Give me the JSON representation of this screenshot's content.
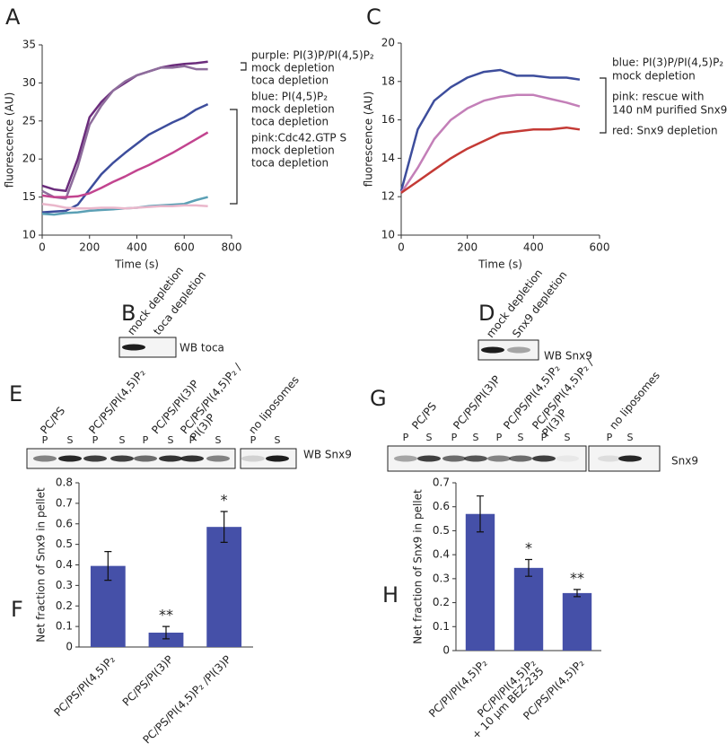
{
  "chart_data": [
    {
      "panel": "A",
      "type": "line",
      "xlabel": "Time (s)",
      "ylabel": "fluorescence (AU)",
      "x": [
        0,
        50,
        100,
        150,
        200,
        250,
        300,
        350,
        400,
        450,
        500,
        550,
        600,
        650,
        700
      ],
      "xlim": [
        0,
        800
      ],
      "xticks": [
        0,
        200,
        400,
        600,
        800
      ],
      "ylim": [
        10,
        35
      ],
      "yticks": [
        10,
        15,
        20,
        25,
        30,
        35
      ],
      "groups": [
        {
          "label": "purple: PI(3)P/PI(4,5)P₂",
          "series": [
            {
              "name": "mock depletion",
              "color": "#6b2c7c",
              "values": [
                16.5,
                16,
                15.8,
                20,
                25.5,
                27.5,
                29,
                30,
                31,
                31.5,
                32,
                32.3,
                32.5,
                32.6,
                32.8
              ]
            },
            {
              "name": "toca depletion",
              "color": "#8e6d9c",
              "values": [
                15.8,
                15,
                14.8,
                19,
                24.5,
                27,
                29,
                30.2,
                31,
                31.5,
                32,
                32,
                32.2,
                31.8,
                31.8
              ]
            }
          ]
        },
        {
          "label": "blue: PI(4,5)P₂",
          "series": [
            {
              "name": "mock depletion",
              "color": "#3d4d9c",
              "values": [
                13,
                13.1,
                13.2,
                14,
                16,
                18,
                19.5,
                20.8,
                22,
                23.2,
                24,
                24.8,
                25.5,
                26.5,
                27.2
              ]
            },
            {
              "name": "toca depletion",
              "color": "#5ba0b5",
              "values": [
                12.8,
                12.7,
                12.9,
                13,
                13.2,
                13.3,
                13.4,
                13.5,
                13.6,
                13.8,
                13.9,
                14,
                14.1,
                14.6,
                15
              ]
            }
          ]
        },
        {
          "label": "pink:Cdc42.GTP S",
          "series": [
            {
              "name": "mock depletion",
              "color": "#c2448f",
              "values": [
                15.2,
                15,
                15,
                15.1,
                15.5,
                16.2,
                17,
                17.7,
                18.5,
                19.2,
                20,
                20.8,
                21.7,
                22.6,
                23.5
              ]
            },
            {
              "name": "toca depletion",
              "color": "#eab7cb",
              "values": [
                14.1,
                13.9,
                13.6,
                13.5,
                13.5,
                13.6,
                13.6,
                13.5,
                13.6,
                13.7,
                13.8,
                13.8,
                13.9,
                13.9,
                13.8
              ]
            }
          ]
        }
      ]
    },
    {
      "panel": "C",
      "type": "line",
      "xlabel": "Time (s)",
      "ylabel": "fluorescence (AU)",
      "x": [
        0,
        50,
        100,
        150,
        200,
        250,
        300,
        350,
        400,
        450,
        500,
        540
      ],
      "xlim": [
        0,
        600
      ],
      "xticks": [
        0,
        200,
        400,
        600
      ],
      "ylim": [
        10,
        20
      ],
      "yticks": [
        10,
        12,
        14,
        16,
        18,
        20
      ],
      "groups": [
        {
          "series": [
            {
              "name": [
                "blue: PI(3)P/PI(4,5)P₂",
                "mock depletion"
              ],
              "color": "#3d4d9c",
              "values": [
                12.3,
                15.5,
                17,
                17.7,
                18.2,
                18.5,
                18.6,
                18.3,
                18.3,
                18.2,
                18.2,
                18.1
              ]
            },
            {
              "name": [
                "pink: rescue with",
                "140 nM purified Snx9"
              ],
              "color": "#c37fb8",
              "values": [
                12.2,
                13.5,
                15,
                16,
                16.6,
                17,
                17.2,
                17.3,
                17.3,
                17.1,
                16.9,
                16.7
              ]
            },
            {
              "name": [
                "red: Snx9 depletion"
              ],
              "color": "#c43a35",
              "values": [
                12.2,
                12.8,
                13.4,
                14,
                14.5,
                14.9,
                15.3,
                15.4,
                15.5,
                15.5,
                15.6,
                15.5
              ]
            }
          ]
        }
      ]
    },
    {
      "panel": "F",
      "type": "bar",
      "ylabel": "Net fraction of Snx9 in pellet",
      "color": "#4550a8",
      "categories": [
        [
          "PC/PS/PI(4,5)P₂"
        ],
        [
          "PC/PS/PI(3)P"
        ],
        [
          "PC/PS/PI(4,5)P₂ /PI(3)P"
        ]
      ],
      "values": [
        0.395,
        0.07,
        0.585
      ],
      "errors": [
        0.07,
        0.03,
        0.075
      ],
      "significance": [
        null,
        "**",
        "*"
      ],
      "ylim": [
        0,
        0.8
      ],
      "yticks": [
        0,
        0.1,
        0.2,
        0.3,
        0.4,
        0.5,
        0.6,
        0.7,
        0.8
      ]
    },
    {
      "panel": "H",
      "type": "bar",
      "ylabel": "Net fraction of Snx9 in pellet",
      "color": "#4550a8",
      "categories": [
        [
          "PC/PI/PI(4,5)P₂"
        ],
        [
          "PC/PI/PI(4,5)P₂",
          "+ 10 µm BEZ-235"
        ],
        [
          "PC/PS/PI(4,5)P₂"
        ]
      ],
      "values": [
        0.57,
        0.345,
        0.24
      ],
      "errors": [
        0.075,
        0.035,
        0.015
      ],
      "significance": [
        null,
        "*",
        "**"
      ],
      "ylim": [
        0,
        0.7
      ],
      "yticks": [
        0,
        0.1,
        0.2,
        0.3,
        0.4,
        0.5,
        0.6,
        0.7
      ]
    }
  ],
  "blots": [
    {
      "panel": "B",
      "lanes": [
        "mock depletion",
        "toca depletion"
      ],
      "label": "WB toca"
    },
    {
      "panel": "D",
      "lanes": [
        "mock depletion",
        "Snx9 depletion"
      ],
      "label": "WB Snx9"
    },
    {
      "panel": "E",
      "conditions": [
        [
          "PC/PS"
        ],
        [
          "PC/PS/PI(4,5)P₂"
        ],
        [
          "PC/PS/PI(3)P"
        ],
        [
          "PC/PS/PI(4,5)P₂ /",
          "PI(3)P"
        ],
        [
          "no liposomes"
        ]
      ],
      "lanes": [
        "P",
        "S",
        "P",
        "S",
        "P",
        "S",
        "P",
        "S",
        "P",
        "S"
      ],
      "label": "WB Snx9"
    },
    {
      "panel": "G",
      "conditions": [
        [
          "PC/PS"
        ],
        [
          "PC/PS/PI(3)P"
        ],
        [
          "PC/PS/PI(4,5)P₂"
        ],
        [
          "PC/PS/PI(4,5)P₂ /",
          "PI(3)P"
        ],
        [
          "no liposomes"
        ]
      ],
      "lanes": [
        "P",
        "S",
        "P",
        "S",
        "P",
        "S",
        "P",
        "S",
        "P",
        "S"
      ],
      "label": "Snx9"
    }
  ]
}
